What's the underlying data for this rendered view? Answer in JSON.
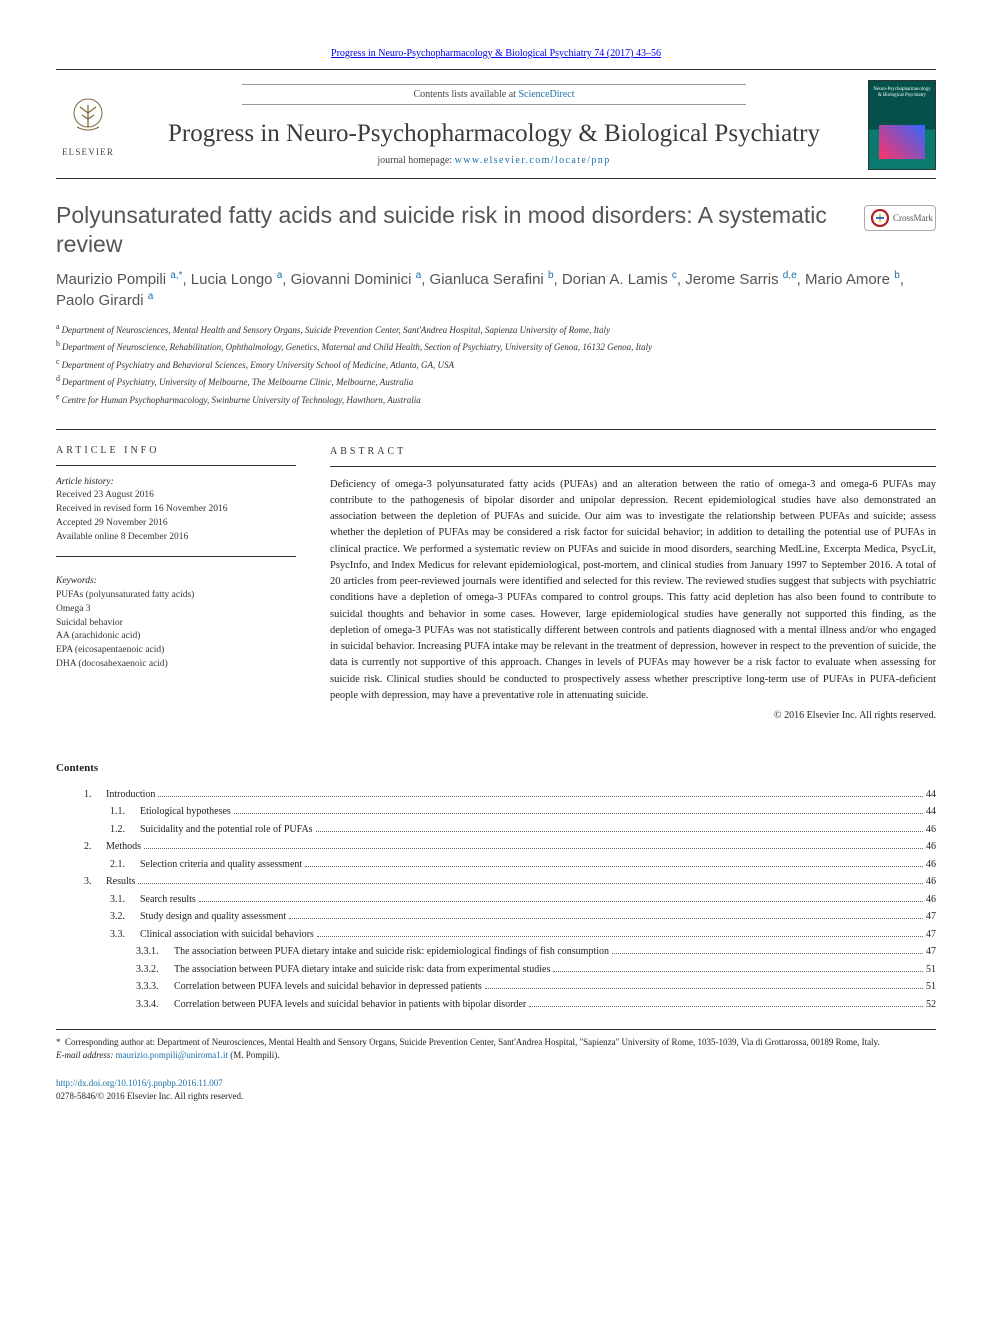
{
  "journal": {
    "citation_link_text": "Progress in Neuro-Psychopharmacology & Biological Psychiatry 74 (2017) 43–56",
    "contents_prefix": "Contents lists available at ",
    "contents_link": "ScienceDirect",
    "title": "Progress in Neuro-Psychopharmacology & Biological Psychiatry",
    "homepage_prefix": "journal homepage: ",
    "homepage_link": "www.elsevier.com/locate/pnp",
    "publisher_name": "ELSEVIER",
    "cover_label": "Neuro-Psychopharmacology & Biological Psychiatry"
  },
  "crossmark_label": "CrossMark",
  "article": {
    "title": "Polyunsaturated fatty acids and suicide risk in mood disorders: A systematic review",
    "authors_html_parts": [
      {
        "name": "Maurizio Pompili ",
        "sup": "a,*"
      },
      {
        "name": ", Lucia Longo ",
        "sup": "a"
      },
      {
        "name": ", Giovanni Dominici ",
        "sup": "a"
      },
      {
        "name": ", Gianluca Serafini ",
        "sup": "b"
      },
      {
        "name": ", Dorian A. Lamis ",
        "sup": "c"
      },
      {
        "name": ", Jerome Sarris ",
        "sup": "d,e"
      },
      {
        "name": ", Mario Amore ",
        "sup": "b"
      },
      {
        "name": ", Paolo Girardi ",
        "sup": "a"
      }
    ],
    "affiliations": [
      {
        "key": "a",
        "text": "Department of Neurosciences, Mental Health and Sensory Organs, Suicide Prevention Center, Sant'Andrea Hospital, Sapienza University of Rome, Italy"
      },
      {
        "key": "b",
        "text": "Department of Neuroscience, Rehabilitation, Ophthalmology, Genetics, Maternal and Child Health, Section of Psychiatry, University of Genoa, 16132 Genoa, Italy"
      },
      {
        "key": "c",
        "text": "Department of Psychiatry and Behavioral Sciences, Emory University School of Medicine, Atlanta, GA, USA"
      },
      {
        "key": "d",
        "text": "Department of Psychiatry, University of Melbourne, The Melbourne Clinic, Melbourne, Australia"
      },
      {
        "key": "e",
        "text": "Centre for Human Psychopharmacology, Swinburne University of Technology, Hawthorn, Australia"
      }
    ]
  },
  "article_info": {
    "heading": "article info",
    "history_heading": "Article history:",
    "history": [
      "Received 23 August 2016",
      "Received in revised form 16 November 2016",
      "Accepted 29 November 2016",
      "Available online 8 December 2016"
    ],
    "keywords_heading": "Keywords:",
    "keywords": [
      "PUFAs (polyunsaturated fatty acids)",
      "Omega 3",
      "Suicidal behavior",
      "AA (arachidonic acid)",
      "EPA (eicosapentaenoic acid)",
      "DHA (docosahexaenoic acid)"
    ]
  },
  "abstract": {
    "heading": "abstract",
    "text": "Deficiency of omega-3 polyunsaturated fatty acids (PUFAs) and an alteration between the ratio of omega-3 and omega-6 PUFAs may contribute to the pathogenesis of bipolar disorder and unipolar depression. Recent epidemiological studies have also demonstrated an association between the depletion of PUFAs and suicide. Our aim was to investigate the relationship between PUFAs and suicide; assess whether the depletion of PUFAs may be considered a risk factor for suicidal behavior; in addition to detailing the potential use of PUFAs in clinical practice. We performed a systematic review on PUFAs and suicide in mood disorders, searching MedLine, Excerpta Medica, PsycLit, PsycInfo, and Index Medicus for relevant epidemiological, post-mortem, and clinical studies from January 1997 to September 2016. A total of 20 articles from peer-reviewed journals were identified and selected for this review. The reviewed studies suggest that subjects with psychiatric conditions have a depletion of omega-3 PUFAs compared to control groups. This fatty acid depletion has also been found to contribute to suicidal thoughts and behavior in some cases. However, large epidemiological studies have generally not supported this finding, as the depletion of omega-3 PUFAs was not statistically different between controls and patients diagnosed with a mental illness and/or who engaged in suicidal behavior. Increasing PUFA intake may be relevant in the treatment of depression, however in respect to the prevention of suicide, the data is currently not supportive of this approach. Changes in levels of PUFAs may however be a risk factor to evaluate when assessing for suicide risk. Clinical studies should be conducted to prospectively assess whether prescriptive long-term use of PUFAs in PUFA-deficient people with depression, may have a preventative role in attenuating suicide.",
    "copyright": "© 2016 Elsevier Inc. All rights reserved."
  },
  "contents": {
    "heading": "Contents",
    "items": [
      {
        "level": 1,
        "num": "1.",
        "label": "Introduction",
        "page": "44"
      },
      {
        "level": 2,
        "num": "1.1.",
        "label": "Etiological hypotheses",
        "page": "44"
      },
      {
        "level": 2,
        "num": "1.2.",
        "label": "Suicidality and the potential role of PUFAs",
        "page": "46"
      },
      {
        "level": 1,
        "num": "2.",
        "label": "Methods",
        "page": "46"
      },
      {
        "level": 2,
        "num": "2.1.",
        "label": "Selection criteria and quality assessment",
        "page": "46"
      },
      {
        "level": 1,
        "num": "3.",
        "label": "Results",
        "page": "46"
      },
      {
        "level": 2,
        "num": "3.1.",
        "label": "Search results",
        "page": "46"
      },
      {
        "level": 2,
        "num": "3.2.",
        "label": "Study design and quality assessment",
        "page": "47"
      },
      {
        "level": 2,
        "num": "3.3.",
        "label": "Clinical association with suicidal behaviors",
        "page": "47"
      },
      {
        "level": 3,
        "num": "3.3.1.",
        "label": "The association between PUFA dietary intake and suicide risk: epidemiological findings of fish consumption",
        "page": "47"
      },
      {
        "level": 3,
        "num": "3.3.2.",
        "label": "The association between PUFA dietary intake and suicide risk: data from experimental studies",
        "page": "51"
      },
      {
        "level": 3,
        "num": "3.3.3.",
        "label": "Correlation between PUFA levels and suicidal behavior in depressed patients",
        "page": "51"
      },
      {
        "level": 3,
        "num": "3.3.4.",
        "label": "Correlation between PUFA levels and suicidal behavior in patients with bipolar disorder",
        "page": "52"
      }
    ]
  },
  "correspondence": {
    "marker": "*",
    "text": "Corresponding author at: Department of Neurosciences, Mental Health and Sensory Organs, Suicide Prevention Center, Sant'Andrea Hospital, \"Sapienza\" University of Rome, 1035-1039, Via di Grottarossa, 00189 Rome, Italy.",
    "email_label": "E-mail address: ",
    "email": "maurizio.pompili@uniroma1.it",
    "email_attrib": " (M. Pompili)."
  },
  "footer": {
    "doi": "http://dx.doi.org/10.1016/j.pnpbp.2016.11.007",
    "issn_line": "0278-5846/© 2016 Elsevier Inc. All rights reserved."
  },
  "colors": {
    "link": "#1a6faa",
    "text_muted": "#555",
    "rule": "#333",
    "cover_top": "#04504a",
    "cover_bottom": "#0a7a6f",
    "crossmark_ring": "#b71c1c"
  }
}
